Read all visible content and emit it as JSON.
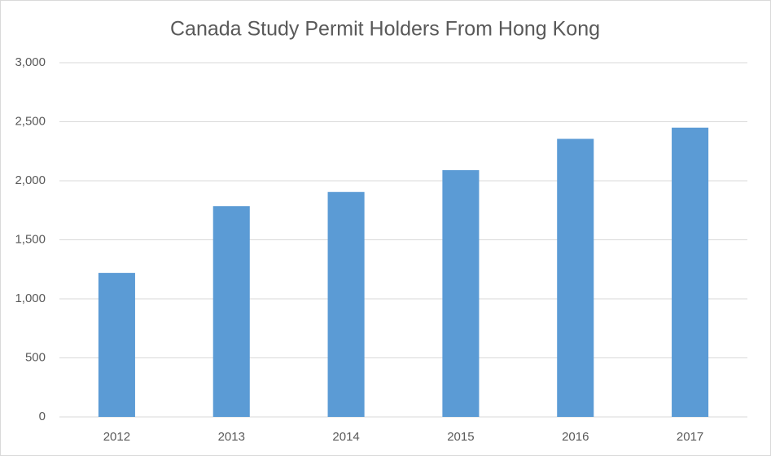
{
  "chart_data": {
    "type": "bar",
    "title": "Canada Study Permit Holders From Hong Kong",
    "categories": [
      "2012",
      "2013",
      "2014",
      "2015",
      "2016",
      "2017"
    ],
    "values": [
      1220,
      1785,
      1905,
      2090,
      2355,
      2450
    ],
    "color": "#5b9bd5",
    "ylim": [
      0,
      3000
    ],
    "yticks": [
      0,
      500,
      {
        "value": 1000,
        "label": "1,000"
      },
      {
        "value": 1500,
        "label": "1,500"
      },
      {
        "value": 2000,
        "label": "2,000"
      },
      {
        "value": 2500,
        "label": "2,500"
      },
      {
        "value": 3000,
        "label": "3,000"
      }
    ],
    "grid": true
  }
}
